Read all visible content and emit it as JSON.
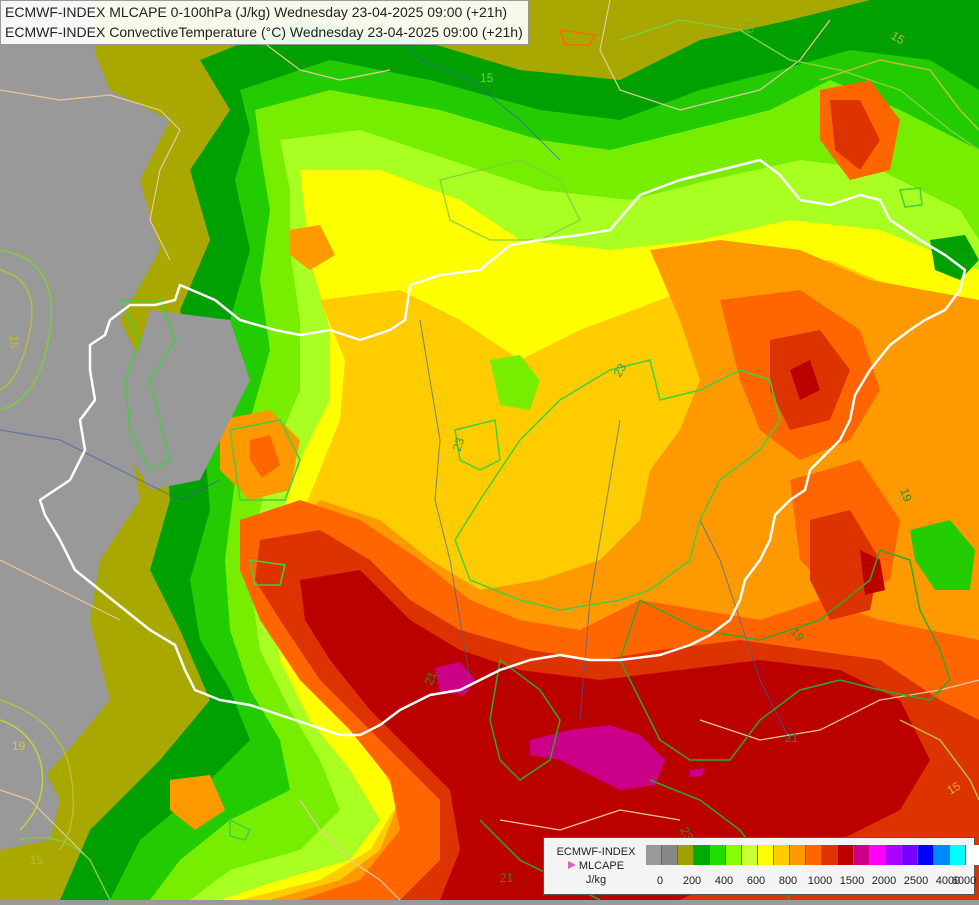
{
  "header": {
    "line1": "ECMWF-INDEX MLCAPE 0-100hPa (J/kg) Wednesday 23-04-2025 09:00 (+21h)",
    "line2": "ECMWF-INDEX ConvectiveTemperature (°C) Wednesday 23-04-2025 09:00 (+21h)"
  },
  "contour_labels": [
    {
      "text": "15",
      "color": "#7ccf3a"
    },
    {
      "text": "15",
      "color": "#bcbc40"
    },
    {
      "text": "19",
      "color": "#5ab83a"
    },
    {
      "text": "19",
      "color": "#2e8c2e"
    },
    {
      "text": "15",
      "color": "#bcbc40"
    },
    {
      "text": "19",
      "color": "#c8d040"
    },
    {
      "text": "23",
      "color": "#3a9a3a"
    },
    {
      "text": "23",
      "color": "#3a9a3a"
    },
    {
      "text": "21",
      "color": "#2e8c2e"
    },
    {
      "text": "21",
      "color": "#2e8c2e"
    },
    {
      "text": "19",
      "color": "#2e8c2e"
    },
    {
      "text": "15",
      "color": "#bcbc40"
    },
    {
      "text": "21",
      "color": "#2e8c2e"
    },
    {
      "text": "23",
      "color": "#2e8c2e"
    },
    {
      "text": "15",
      "color": "#bcbc40"
    }
  ],
  "legend": {
    "source": "ECMWF-INDEX",
    "field": "MLCAPE",
    "unit": "J/kg",
    "colors": [
      "#999999",
      "#888888",
      "#a0a000",
      "#00aa00",
      "#22dd00",
      "#88ff00",
      "#ccff33",
      "#ffff00",
      "#ffcc00",
      "#ff9900",
      "#ff6600",
      "#dd3300",
      "#bb0000",
      "#cc0088",
      "#ff00ff",
      "#aa00ff",
      "#7700ff",
      "#0000ff",
      "#0088ff",
      "#00ffff",
      "#ffffff"
    ],
    "ticks": [
      "0",
      "200",
      "400",
      "600",
      "800",
      "1000",
      "1500",
      "2000",
      "2500",
      "4000",
      "6000"
    ]
  }
}
